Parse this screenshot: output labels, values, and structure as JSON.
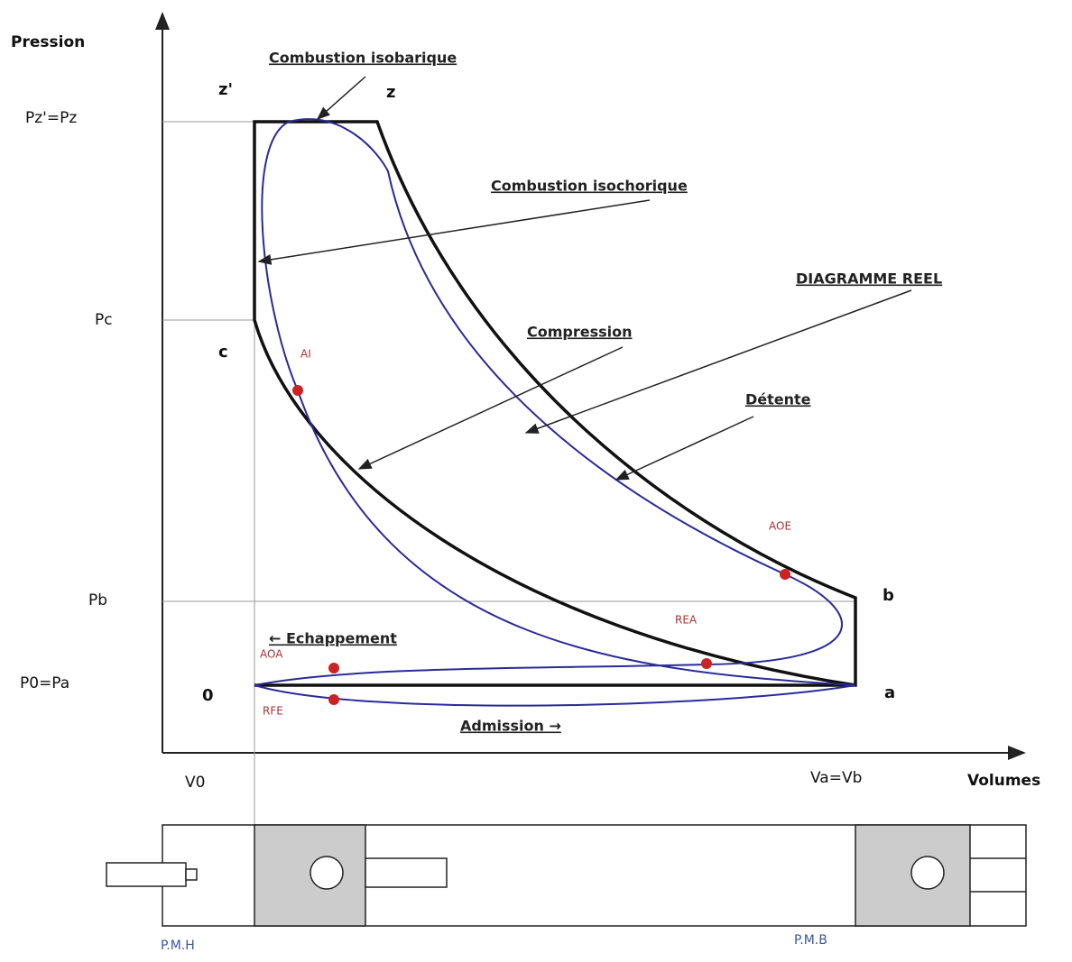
{
  "axes": {
    "y_label": "Pression",
    "x_label": "Volumes",
    "y_ticks": [
      "Pz'=Pz",
      "Pc",
      "Pb",
      "P0=Pa"
    ],
    "x_ticks": [
      "V0",
      "Va=Vb"
    ]
  },
  "points": [
    "z'",
    "z",
    "c",
    "b",
    "0",
    "a"
  ],
  "events": [
    "AI",
    "AOE",
    "REA",
    "AOA",
    "RFE"
  ],
  "annotations": [
    "Combustion isobarique",
    "Combustion isochorique",
    "DIAGRAMME REEL",
    "Compression",
    "Détente",
    "← Echappement",
    "Admission →"
  ],
  "positions": [
    "P.M.H",
    "P.M.B"
  ]
}
